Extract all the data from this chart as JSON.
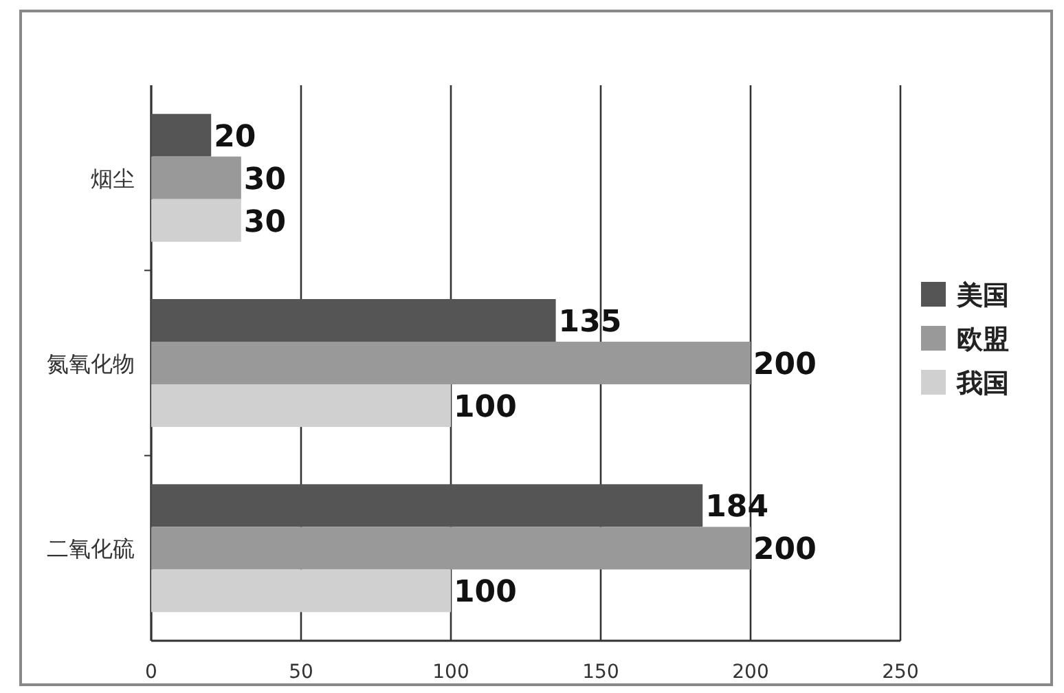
{
  "chart_data": {
    "type": "bar",
    "orientation": "horizontal",
    "categories": [
      "烟尘",
      "氮氧化物",
      "二氧化硫"
    ],
    "series": [
      {
        "name": "美国",
        "color": "#555555",
        "values": [
          20,
          135,
          184
        ]
      },
      {
        "name": "欧盟",
        "color": "#999999",
        "values": [
          30,
          200,
          200
        ]
      },
      {
        "name": "我国",
        "color": "#d0d0d0",
        "values": [
          30,
          100,
          100
        ]
      }
    ],
    "xlim": [
      0,
      250
    ],
    "xticks": [
      0,
      50,
      100,
      150,
      200,
      250
    ],
    "grid": "x",
    "legend": "right",
    "data_labels": true
  }
}
